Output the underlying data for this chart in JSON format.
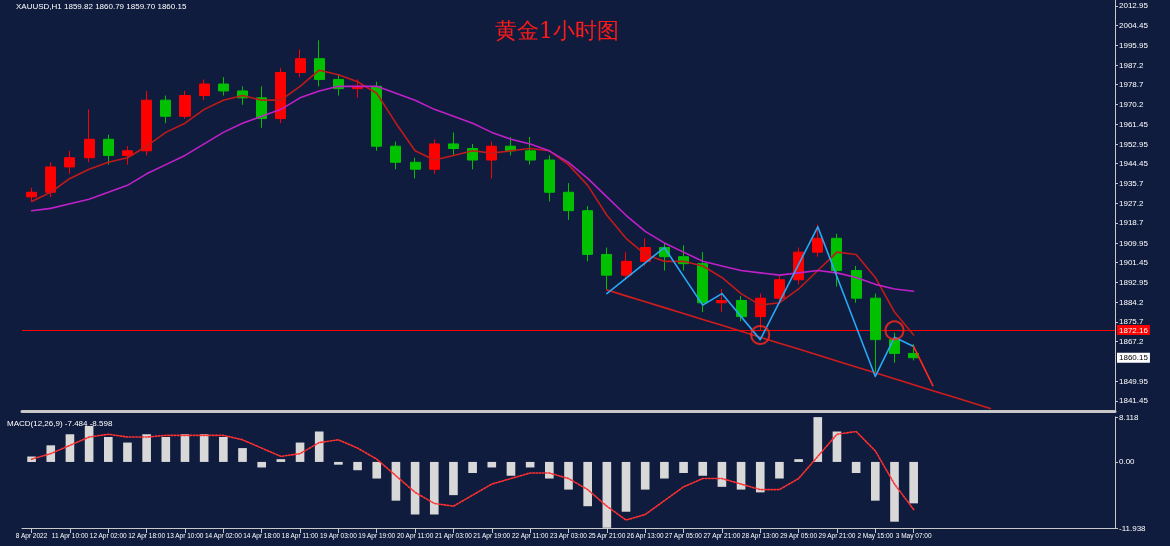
{
  "chart_data": [
    {
      "type": "candlestick",
      "title": "黄金1小时图",
      "annotations": [
        "XAUUSD,H1 1859.82 1860.79 1859.70 1860.15",
        {
          "text": "1860.15",
          "y": 1860.15
        }
      ],
      "ylim": [
        1837,
        2015.5
      ],
      "yticks": [
        1841.45,
        1849.95,
        1867.2,
        1875.7,
        1884.2,
        1892.95,
        1901.45,
        1909.95,
        1918.7,
        1927.2,
        1935.7,
        1944.45,
        1952.95,
        1961.45,
        1970.2,
        1978.7,
        1987.2,
        1995.95,
        2004.45,
        2012.95
      ],
      "tick_labels": "y",
      "grid": false,
      "marker": "none",
      "ref_lines": [
        {
          "axis": "y",
          "value": 1872.16,
          "label": "1872.16",
          "color": "#ff0000"
        }
      ],
      "series": [
        {
          "ohlc": [
            [
              1930,
              1934,
              1928,
              1932
            ],
            [
              1932,
              1945,
              1930,
              1943
            ],
            [
              1943,
              1950,
              1940,
              1947
            ],
            [
              1947,
              1968,
              1945,
              1955
            ],
            [
              1955,
              1957,
              1944,
              1948
            ],
            [
              1948,
              1952,
              1944,
              1950
            ],
            [
              1950,
              1976,
              1948,
              1972
            ],
            [
              1972,
              1974,
              1962,
              1965
            ],
            [
              1965,
              1976,
              1964,
              1974
            ],
            [
              1974,
              1981,
              1972,
              1979
            ],
            [
              1979,
              1982,
              1974,
              1976
            ],
            [
              1976,
              1978,
              1970,
              1973
            ],
            [
              1973,
              1978,
              1960,
              1964
            ],
            [
              1964,
              1986,
              1962,
              1984
            ],
            [
              1984,
              1994,
              1982,
              1990
            ],
            [
              1990,
              1998,
              1978,
              1981
            ],
            [
              1981,
              1983,
              1974,
              1977
            ],
            [
              1977,
              1981,
              1973,
              1978
            ],
            [
              1978,
              1980,
              1950,
              1952
            ],
            [
              1952,
              1954,
              1942,
              1945
            ],
            [
              1945,
              1947,
              1938,
              1942
            ],
            [
              1942,
              1955,
              1940,
              1953
            ],
            [
              1953,
              1958,
              1948,
              1951
            ],
            [
              1951,
              1953,
              1942,
              1946
            ],
            [
              1946,
              1954,
              1938,
              1952
            ],
            [
              1952,
              1956,
              1948,
              1950
            ],
            [
              1950,
              1956,
              1944,
              1946
            ],
            [
              1946,
              1948,
              1928,
              1932
            ],
            [
              1932,
              1936,
              1920,
              1924
            ],
            [
              1924,
              1926,
              1902,
              1905
            ],
            [
              1905,
              1908,
              1890,
              1896
            ],
            [
              1896,
              1906,
              1894,
              1902
            ],
            [
              1902,
              1912,
              1900,
              1908
            ],
            [
              1908,
              1910,
              1898,
              1904
            ],
            [
              1904,
              1909,
              1898,
              1901
            ],
            [
              1901,
              1906,
              1880,
              1884
            ],
            [
              1884,
              1890,
              1880,
              1885
            ],
            [
              1885,
              1887,
              1876,
              1878
            ],
            [
              1878,
              1888,
              1872,
              1886
            ],
            [
              1886,
              1896,
              1884,
              1894
            ],
            [
              1894,
              1908,
              1892,
              1906
            ],
            [
              1906,
              1918,
              1904,
              1912
            ],
            [
              1912,
              1914,
              1891,
              1898
            ],
            [
              1898,
              1900,
              1884,
              1886
            ],
            [
              1886,
              1888,
              1854,
              1868
            ],
            [
              1868,
              1871,
              1858,
              1862
            ],
            [
              1862,
              1866,
              1859,
              1860.15
            ],
            null,
            null,
            null,
            null,
            null,
            null,
            null,
            null,
            null,
            null
          ],
          "colors": [
            "#ff0000",
            "#ff0000",
            "#ff0000",
            "#ff0000",
            "#00c000",
            "#ff0000",
            "#ff0000",
            "#00c000",
            "#ff0000",
            "#ff0000",
            "#00c000",
            "#00c000",
            "#00c000",
            "#ff0000",
            "#ff0000",
            "#00c000",
            "#00c000",
            "#ff0000",
            "#00c000",
            "#00c000",
            "#00c000",
            "#ff0000",
            "#00c000",
            "#00c000",
            "#ff0000",
            "#00c000",
            "#00c000",
            "#00c000",
            "#00c000",
            "#00c000",
            "#00c000",
            "#ff0000",
            "#ff0000",
            "#00c000",
            "#00c000",
            "#00c000",
            "#ff0000",
            "#00c000",
            "#ff0000",
            "#ff0000",
            "#ff0000",
            "#ff0000",
            "#00c000",
            "#00c000",
            "#00c000",
            "#00c000",
            "#00c000",
            null,
            null,
            null,
            null,
            null,
            null,
            null,
            null,
            null,
            null
          ]
        },
        {
          "type": "line",
          "color": "#c01a1a",
          "values": [
            1928,
            1932,
            1938,
            1942,
            1945,
            1947,
            1952,
            1958,
            1962,
            1968,
            1972,
            1974,
            1972,
            1972,
            1978,
            1985,
            1983,
            1980,
            1975,
            1962,
            1950,
            1946,
            1948,
            1950,
            1949,
            1950,
            1951,
            1950,
            1944,
            1935,
            1922,
            1912,
            1905,
            1902,
            1902,
            1900,
            1895,
            1888,
            1883,
            1884,
            1890,
            1898,
            1906,
            1905,
            1895,
            1880,
            1870,
            null,
            null,
            null,
            null,
            null,
            null,
            null,
            null,
            null,
            null
          ]
        },
        {
          "type": "line",
          "color": "#c020c8",
          "values": [
            1924,
            1925,
            1927,
            1929,
            1932,
            1935,
            1940,
            1944,
            1948,
            1953,
            1958,
            1962,
            1965,
            1968,
            1973,
            1976,
            1978,
            1978,
            1978,
            1975,
            1972,
            1968,
            1965,
            1962,
            1958,
            1955,
            1953,
            1950,
            1945,
            1938,
            1930,
            1922,
            1915,
            1910,
            1906,
            1902,
            1900,
            1898,
            1897,
            1896,
            1897,
            1898,
            1897,
            1895,
            1892,
            1890,
            1889,
            null,
            null,
            null,
            null,
            null,
            null,
            null,
            null,
            null,
            null
          ]
        },
        {
          "type": "line",
          "color": "#d01c1c",
          "values": [
            null,
            null,
            null,
            null,
            null,
            null,
            null,
            null,
            null,
            null,
            null,
            null,
            null,
            null,
            null,
            null,
            null,
            null,
            null,
            null,
            null,
            null,
            null,
            null,
            null,
            null,
            null,
            null,
            null,
            null,
            1889.6,
            1887.0,
            1884.4,
            1881.9,
            1879.3,
            1876.7,
            1874.2,
            1871.6,
            1869.0,
            1866.4,
            1863.9,
            1861.3,
            1858.7,
            1856.1,
            1853.6,
            1851.0,
            1848.4,
            1845.8,
            1843.3,
            1840.7,
            1838.1,
            null,
            null,
            null,
            null,
            null,
            null
          ]
        },
        {
          "type": "line",
          "color": "#29a8f5",
          "values": [
            null,
            null,
            null,
            null,
            null,
            null,
            null,
            null,
            null,
            null,
            null,
            null,
            null,
            null,
            null,
            null,
            null,
            null,
            null,
            null,
            null,
            null,
            null,
            null,
            null,
            null,
            null,
            null,
            null,
            null,
            1888,
            null,
            null,
            1908,
            null,
            1883,
            1888,
            null,
            1868,
            null,
            null,
            1917,
            null,
            null,
            1852,
            1869,
            1865,
            null,
            null,
            null,
            null,
            null,
            null,
            null,
            null,
            null,
            null
          ]
        },
        {
          "type": "line",
          "color": "#ff2a1a",
          "values": [
            null,
            null,
            null,
            null,
            null,
            null,
            null,
            null,
            null,
            null,
            null,
            null,
            null,
            null,
            null,
            null,
            null,
            null,
            null,
            null,
            null,
            null,
            null,
            null,
            null,
            null,
            null,
            null,
            null,
            null,
            null,
            null,
            null,
            null,
            null,
            null,
            null,
            null,
            null,
            null,
            null,
            null,
            null,
            null,
            null,
            null,
            1865,
            1848,
            null,
            null,
            null,
            null,
            null,
            null,
            null,
            null,
            null
          ]
        },
        {
          "type": "scatter",
          "color": "#ff2a1a",
          "marker": "circle",
          "values": [
            null,
            null,
            null,
            null,
            null,
            null,
            null,
            null,
            null,
            null,
            null,
            null,
            null,
            null,
            null,
            null,
            null,
            null,
            null,
            null,
            null,
            null,
            null,
            null,
            null,
            null,
            null,
            null,
            null,
            null,
            null,
            null,
            null,
            null,
            null,
            null,
            null,
            null,
            1870,
            null,
            null,
            null,
            null,
            null,
            null,
            1872,
            null,
            null,
            null,
            null,
            null,
            null,
            null,
            null,
            null,
            null,
            null
          ]
        }
      ]
    },
    {
      "type": "bar",
      "title": "MACD(12,26,9) -7.484 -8.598",
      "categories": [
        "8 Apr 2022",
        null,
        "11 Apr 10:00",
        null,
        "12 Apr 02:00",
        null,
        "12 Apr 18:00",
        null,
        "13 Apr 10:00",
        null,
        "14 Apr 02:00",
        null,
        "14 Apr 18:00",
        null,
        "18 Apr 11:00",
        null,
        "19 Apr 03:00",
        null,
        "19 Apr 19:00",
        null,
        "20 Apr 11:00",
        null,
        "21 Apr 03:00",
        null,
        "21 Apr 19:00",
        null,
        "22 Apr 11:00",
        null,
        "23 Apr 03:00",
        null,
        "25 Apr 21:00",
        null,
        "26 Apr 13:00",
        null,
        "27 Apr 05:00",
        null,
        "27 Apr 21:00",
        null,
        "28 Apr 13:00",
        null,
        "29 Apr 05:00",
        null,
        "29 Apr 21:00",
        null,
        "2 May 15:00",
        null,
        "3 May 07:00",
        null,
        null,
        null,
        null,
        null,
        null,
        null,
        null,
        null,
        null
      ],
      "ylim": [
        -11.938,
        8.118
      ],
      "yticks": [
        -11.938,
        {
          "value": 0,
          "label": "0.00"
        },
        8.118
      ],
      "grid": false,
      "marker": "none",
      "series": [
        {
          "color": "#d8d8d8",
          "values": [
            1,
            3,
            5,
            6.5,
            4.5,
            3.5,
            5,
            4.5,
            5,
            5,
            4.5,
            2.5,
            -1,
            0.5,
            3.5,
            5.5,
            -0.5,
            -1.5,
            -3,
            -7,
            -9.5,
            -9.5,
            -6,
            -2,
            -1,
            -2.5,
            -1,
            -3,
            -5,
            -8,
            -11.9,
            -9,
            -5,
            -3,
            -2,
            -2.5,
            -4.5,
            -5,
            -5.5,
            -3,
            0.5,
            8.1,
            5.5,
            -2,
            -7,
            -10.8,
            -7.484,
            null,
            null,
            null,
            null,
            null,
            null,
            null,
            null,
            null,
            null
          ]
        },
        {
          "type": "line",
          "color": "#ff3030",
          "line_style": "dotted",
          "values": [
            0.5,
            1.5,
            3,
            4.5,
            5,
            4.5,
            4.5,
            4.8,
            4.8,
            4.8,
            4.8,
            4,
            2.5,
            1,
            1.5,
            3.5,
            4,
            2.5,
            0.5,
            -2.5,
            -5.5,
            -7.5,
            -8,
            -6,
            -4,
            -3,
            -2,
            -2,
            -3,
            -5,
            -8,
            -10.5,
            -9.5,
            -7,
            -4.5,
            -3,
            -3,
            -4,
            -5,
            -5,
            -3,
            1,
            5,
            5.5,
            2,
            -4,
            -8.598,
            null,
            null,
            null,
            null,
            null,
            null,
            null,
            null,
            null,
            null
          ]
        }
      ]
    }
  ]
}
